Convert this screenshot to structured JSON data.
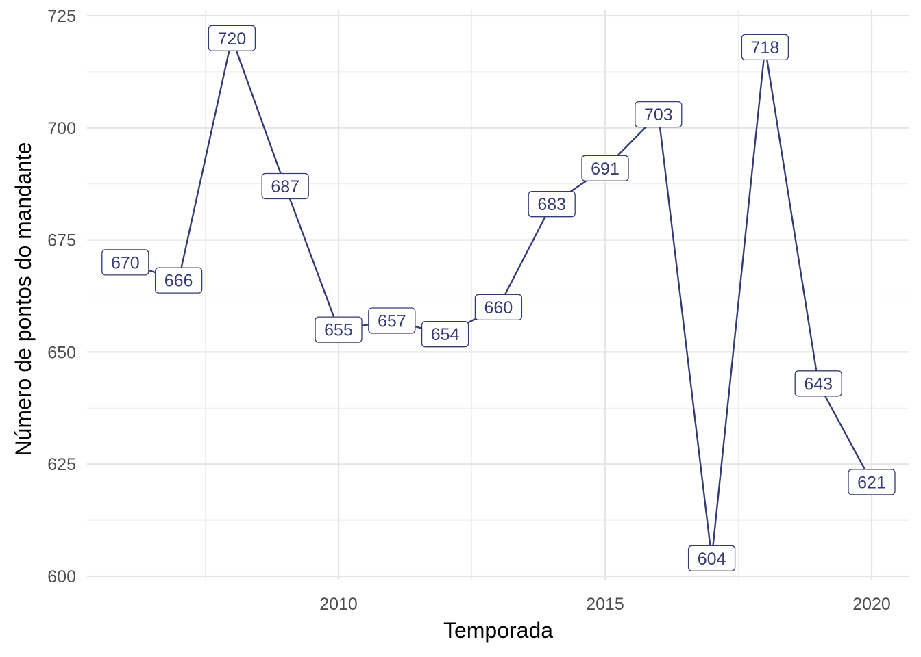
{
  "chart_data": {
    "type": "line",
    "title": "",
    "xlabel": "Temporada",
    "ylabel": "Número de pontos do mandante",
    "x": [
      2006,
      2007,
      2008,
      2009,
      2010,
      2011,
      2012,
      2013,
      2014,
      2015,
      2016,
      2017,
      2018,
      2019,
      2020
    ],
    "series": [
      {
        "values": [
          670,
          666,
          720,
          687,
          655,
          657,
          654,
          660,
          683,
          691,
          703,
          604,
          718,
          643,
          621
        ]
      }
    ],
    "x_ticks": [
      2010,
      2015,
      2020
    ],
    "x_tick_labels": [
      "2010",
      "2015",
      "2020"
    ],
    "y_ticks": [
      600,
      625,
      650,
      675,
      700,
      725
    ],
    "y_tick_labels": [
      "600",
      "625",
      "650",
      "675",
      "700",
      "725"
    ],
    "xlim": [
      2005.35,
      2020.68
    ],
    "ylim": [
      600,
      725
    ],
    "grid": true,
    "legend": "none",
    "colors": {
      "line": "#353b73",
      "label_border": "#353b73",
      "label_text": "#353b73",
      "grid": "#e5e5e5"
    }
  }
}
